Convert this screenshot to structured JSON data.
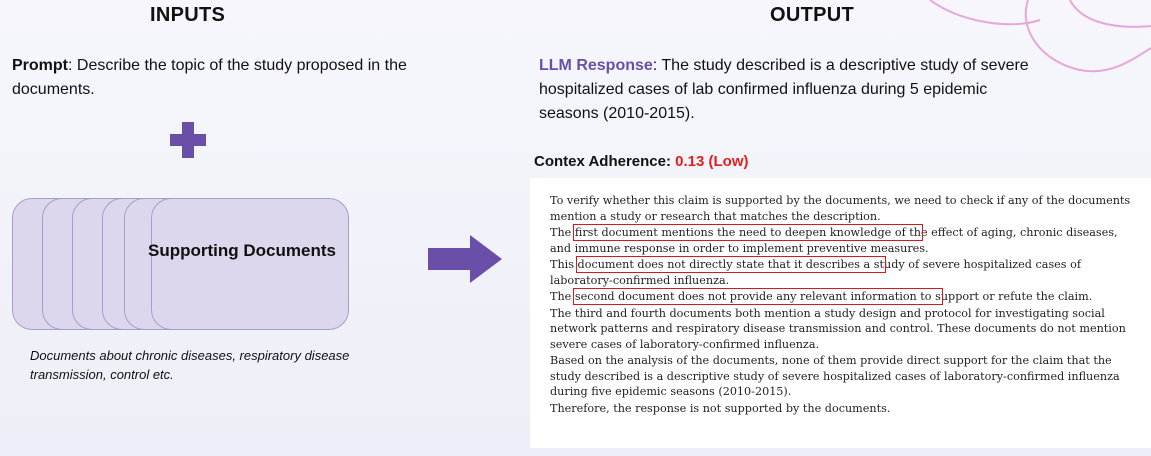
{
  "inputs": {
    "heading": "INPUTS",
    "prompt_label": "Prompt",
    "prompt_text": ": Describe the topic of the study proposed in the documents.",
    "documents_label": "Supporting Documents",
    "documents_caption": "Documents about chronic diseases, respiratory disease transmission, control etc."
  },
  "output": {
    "heading": "OUTPUT",
    "llm_label": "LLM Response",
    "llm_text": ": The study described is a descriptive study of severe hospitalized cases of lab confirmed influenza during 5 epidemic seasons (2010-2015).",
    "adherence_label": "Contex Adherence:",
    "adherence_score": "0.13 (Low)",
    "colors": {
      "accent": "#6a4fa8",
      "score": "#e0201c",
      "highlight_box": "#d7191c"
    }
  },
  "explanation": {
    "p1": "To verify whether this claim is supported by the documents, we need to check if any of the documents mention a study or research that matches the description.",
    "p2_pre": "The ",
    "p2_hl": "first document mentions the need to deepen knowledge of th",
    "p2_post": "e effect of aging, chronic diseases, and immune response in order to implement preventive measures.",
    "p3_pre": "This ",
    "p3_hl": "document does not directly state that it describes a st",
    "p3_post": "udy of severe hospitalized cases of laboratory-confirmed influenza.",
    "p4_pre": "The ",
    "p4_hl": "second document does not provide any relevant information to s",
    "p4_post": "upport or refute the claim.",
    "p5": "The third and fourth documents both mention a study design and protocol for investigating social network patterns and respiratory disease transmission and control.  These documents do not mention severe cases of laboratory-confirmed influenza.",
    "p6": "Based on the analysis of the documents, none of them provide direct support for the claim that the study described is a descriptive study of severe hospitalized cases of laboratory-confirmed influenza during five epidemic seasons (2010-2015).",
    "p7": "Therefore, the response is not supported by the documents."
  }
}
